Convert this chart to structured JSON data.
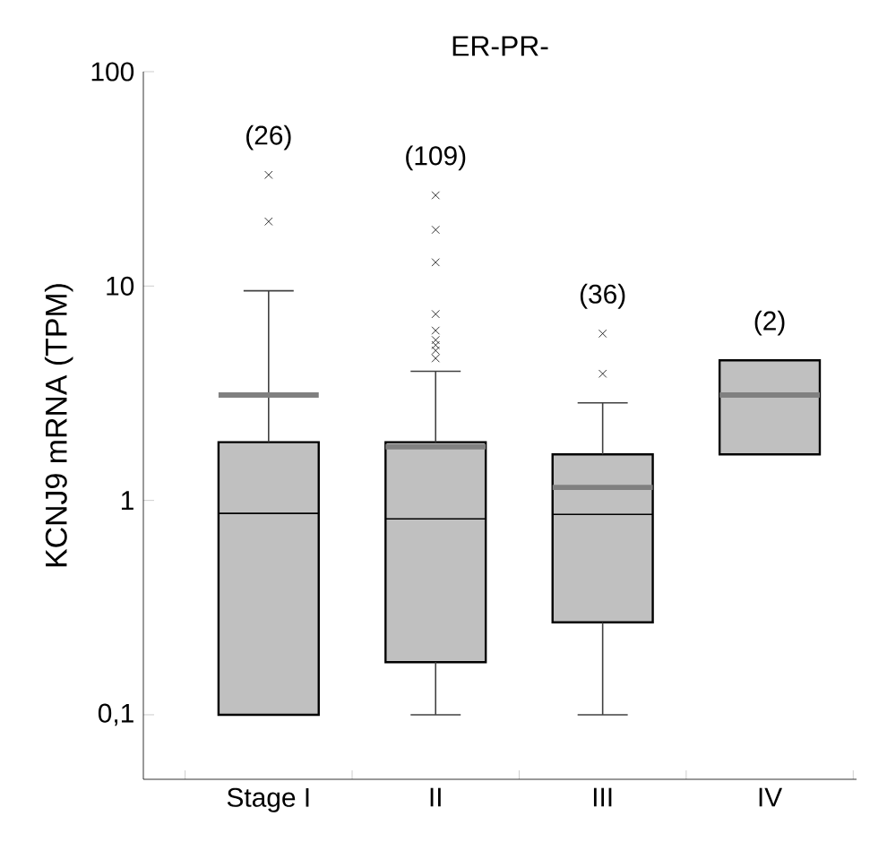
{
  "chart_data": {
    "type": "box",
    "title": "ER-PR-",
    "ylabel": "KCNJ9 mRNA (TPM)",
    "categories": [
      "Stage I",
      "II",
      "III",
      "IV"
    ],
    "log": "y",
    "ylim": [
      0.05,
      100
    ],
    "yticks": [
      {
        "value": 0.1,
        "label": "0,1"
      },
      1,
      10,
      100
    ],
    "grid": false,
    "marker": "cross",
    "series": [
      {
        "color": "#c0c0c0",
        "boxes": [
          {
            "low": 0.1,
            "q1": 0.1,
            "median": 0.87,
            "q3": 1.87,
            "high": 9.5,
            "mean": 3.1,
            "outliers": [
              20,
              33
            ]
          },
          {
            "low": 0.1,
            "q1": 0.176,
            "median": 0.82,
            "q3": 1.87,
            "high": 4.0,
            "mean": 1.78,
            "outliers": [
              4.6,
              5.0,
              5.3,
              5.6,
              6.2,
              7.4,
              12.9,
              18.3,
              26.5
            ]
          },
          {
            "low": 0.1,
            "q1": 0.27,
            "median": 0.86,
            "q3": 1.64,
            "high": 2.85,
            "mean": 1.15,
            "outliers": [
              3.9,
              6.0
            ]
          },
          {
            "low": 1.64,
            "q1": 1.64,
            "median": 3.1,
            "q3": 4.5,
            "high": 4.5,
            "mean": 3.1
          }
        ]
      }
    ],
    "annotations": [
      "(26)",
      "(109)",
      "(36)",
      "(2)"
    ]
  }
}
